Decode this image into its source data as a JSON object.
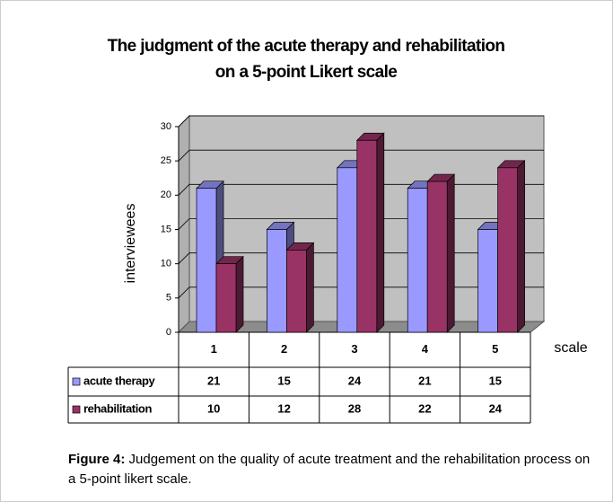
{
  "chart_data": {
    "type": "bar",
    "title": "The judgment of the acute therapy and rehabilitation on a 5-point Likert scale",
    "categories": [
      "1",
      "2",
      "3",
      "4",
      "5"
    ],
    "series": [
      {
        "name": "acute therapy",
        "color": "#9999ff",
        "values": [
          21,
          15,
          24,
          21,
          15
        ]
      },
      {
        "name": "rehabilitation",
        "color": "#993366",
        "values": [
          10,
          12,
          28,
          22,
          24
        ]
      }
    ],
    "ylabel": "interviewees",
    "xlabel": "scale",
    "ylim": [
      0,
      30
    ],
    "yticks": [
      0,
      5,
      10,
      15,
      20,
      25,
      30
    ],
    "grid": true
  },
  "caption": {
    "label": "Figure 4:",
    "text": "Judgement on the quality of acute treatment and the rehabilitation process on a 5-point likert scale."
  }
}
